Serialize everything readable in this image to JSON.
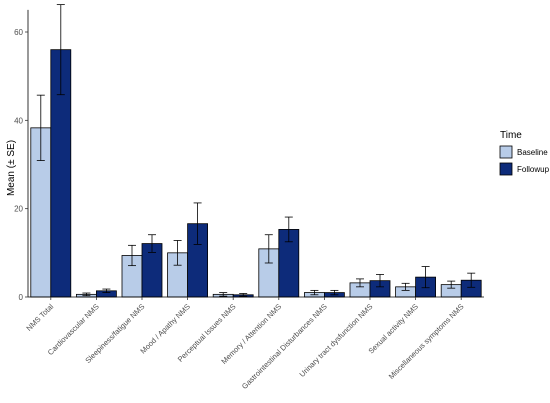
{
  "chart_data": {
    "type": "bar",
    "title": "",
    "xlabel": "",
    "ylabel": "Mean (± SE)",
    "ylim": [
      0,
      65
    ],
    "yticks": [
      0,
      20,
      40,
      60
    ],
    "grid": false,
    "legend_position": "right",
    "legend_title": "Time",
    "categories": [
      "NMS Total",
      "Cardiovascular NMS",
      "Sleepiness/fatigue NMS",
      "Mood / Apathy NMS",
      "Perceptual Issues NMS",
      "Memory / Attention NMS",
      "Gastrointestinal Disturbances NMS",
      "Urinary tract dysfunction NMS",
      "Sexual activity NMS",
      "Miscellaneous symptoms NMS"
    ],
    "series": [
      {
        "name": "Baseline",
        "color": "#b8cce8",
        "values": [
          38.3,
          0.6,
          9.4,
          10.0,
          0.6,
          10.9,
          1.0,
          3.2,
          2.3,
          2.8
        ],
        "errors": [
          7.4,
          0.3,
          2.3,
          2.8,
          0.4,
          3.2,
          0.5,
          0.9,
          0.8,
          0.8
        ]
      },
      {
        "name": "Followup",
        "color": "#0d2b7a",
        "values": [
          56.0,
          1.4,
          12.1,
          16.6,
          0.5,
          15.3,
          1.0,
          3.7,
          4.5,
          3.8
        ],
        "errors": [
          10.2,
          0.4,
          2.0,
          4.7,
          0.3,
          2.8,
          0.5,
          1.4,
          2.4,
          1.6
        ]
      }
    ]
  }
}
